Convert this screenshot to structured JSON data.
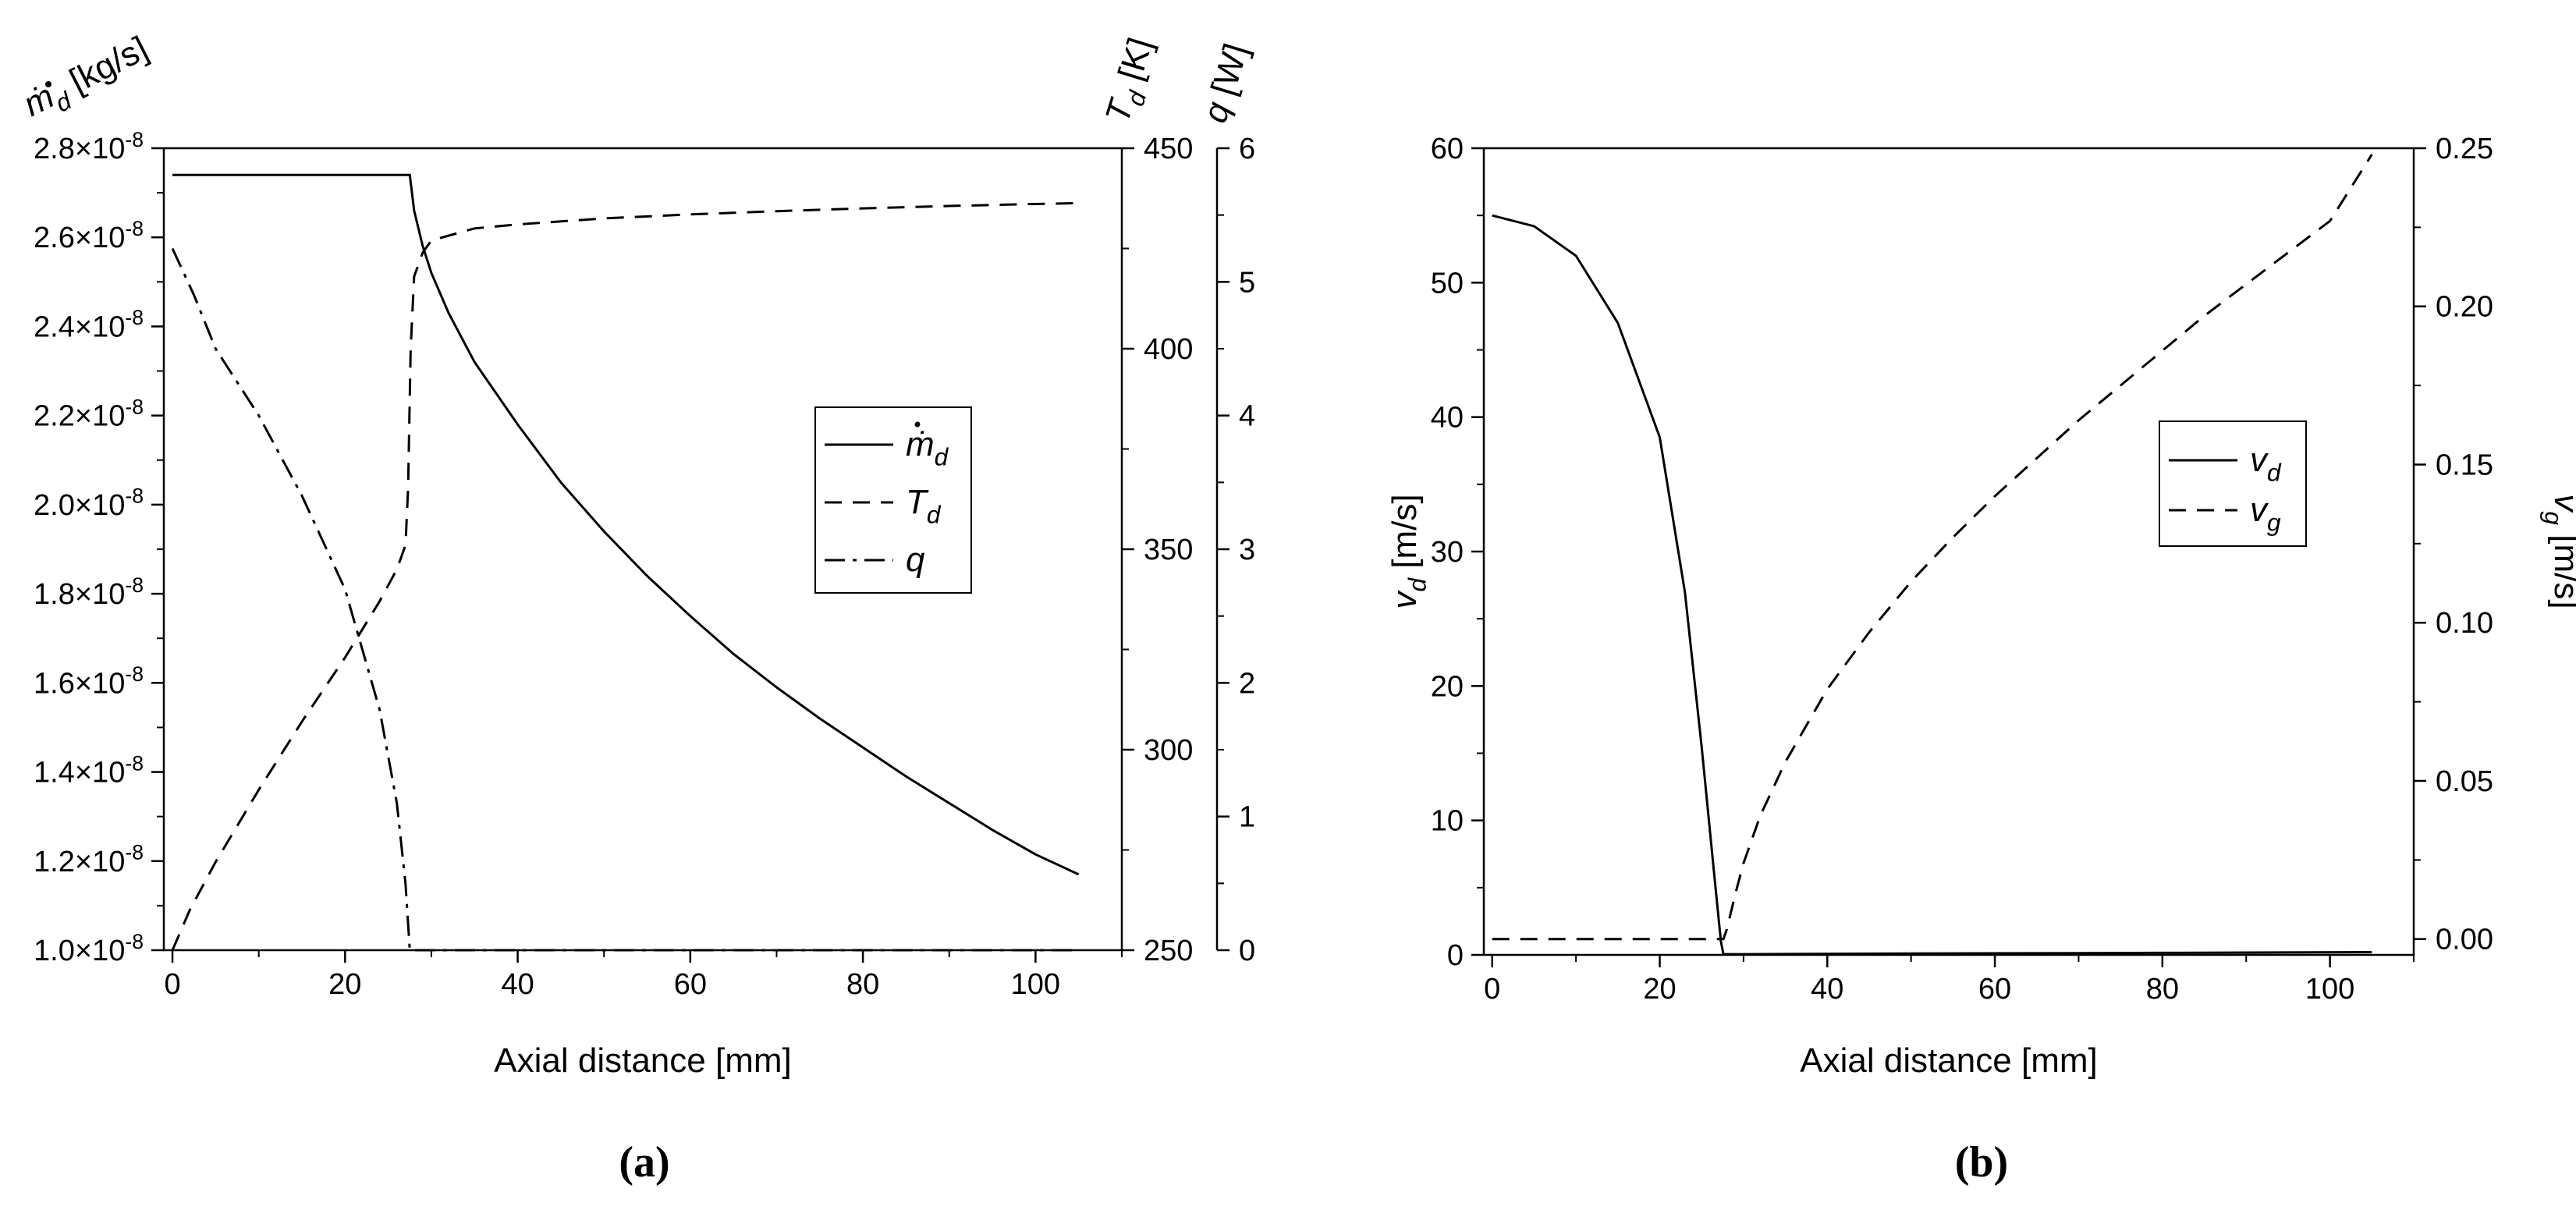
{
  "chart_data": [
    {
      "panel_label": "(a)",
      "type": "line",
      "xlabel": "Axial distance [mm]",
      "xlim": [
        -1,
        110
      ],
      "xticks": [
        0,
        20,
        40,
        60,
        80,
        100
      ],
      "y_left": {
        "label": "ṁ_d [kg/s]",
        "lim": [
          1e-08,
          2.8e-08
        ],
        "ticks": [
          1e-08,
          1.2e-08,
          1.4e-08,
          1.6e-08,
          1.8e-08,
          2e-08,
          2.2e-08,
          2.4e-08,
          2.6e-08,
          2.8e-08
        ],
        "tick_labels": [
          "1.0×10⁻⁸",
          "1.2×10⁻⁸",
          "1.4×10⁻⁸",
          "1.6×10⁻⁸",
          "1.8×10⁻⁸",
          "2.0×10⁻⁸",
          "2.2×10⁻⁸",
          "2.4×10⁻⁸",
          "2.6×10⁻⁸",
          "2.8×10⁻⁸"
        ]
      },
      "y_right_1": {
        "label": "T_d [K]",
        "lim": [
          250,
          450
        ],
        "ticks": [
          250,
          300,
          350,
          400,
          450
        ]
      },
      "y_right_2": {
        "label": "q [W]",
        "lim": [
          0,
          6
        ],
        "ticks": [
          0,
          1,
          2,
          3,
          4,
          5,
          6
        ]
      },
      "legend_position": "center-right",
      "series": [
        {
          "name": "ṁ_d",
          "axis": "left",
          "style": "solid",
          "x": [
            0,
            27.5,
            28,
            29,
            30,
            32,
            35,
            40,
            45,
            50,
            55,
            60,
            65,
            70,
            75,
            80,
            85,
            90,
            95,
            100,
            105
          ],
          "y": [
            2.74e-08,
            2.74e-08,
            2.66e-08,
            2.58e-08,
            2.52e-08,
            2.43e-08,
            2.32e-08,
            2.18e-08,
            2.05e-08,
            1.94e-08,
            1.84e-08,
            1.75e-08,
            1.665e-08,
            1.59e-08,
            1.52e-08,
            1.455e-08,
            1.39e-08,
            1.33e-08,
            1.27e-08,
            1.215e-08,
            1.17e-08
          ]
        },
        {
          "name": "T_d",
          "axis": "right1",
          "style": "dashed",
          "x": [
            0,
            2,
            5,
            10,
            15,
            20,
            24,
            26,
            27,
            27.3,
            27.6,
            28,
            29,
            30,
            35,
            40,
            50,
            60,
            70,
            80,
            90,
            100,
            105
          ],
          "y": [
            250,
            260,
            272,
            290,
            307,
            323,
            337,
            345,
            351,
            365,
            400,
            418,
            424,
            427,
            430,
            431,
            432.5,
            433.5,
            434.3,
            435,
            435.6,
            436.1,
            436.3
          ]
        },
        {
          "name": "q",
          "axis": "right2",
          "style": "dashdot",
          "x": [
            0,
            2.5,
            5,
            10,
            15,
            20,
            24,
            26,
            27,
            27.5,
            30,
            60,
            105
          ],
          "y": [
            5.25,
            4.9,
            4.5,
            4.0,
            3.4,
            2.7,
            1.8,
            1.1,
            0.5,
            0.0,
            0.0,
            0.0,
            0.0
          ]
        }
      ]
    },
    {
      "panel_label": "(b)",
      "type": "line",
      "xlabel": "Axial distance [mm]",
      "xlim": [
        -1,
        110
      ],
      "xticks": [
        0,
        20,
        40,
        60,
        80,
        100
      ],
      "y_left": {
        "label": "v_d [m/s]",
        "lim": [
          0,
          60
        ],
        "ticks": [
          0,
          10,
          20,
          30,
          40,
          50,
          60
        ]
      },
      "y_right": {
        "label": "v_g [m/s]",
        "lim": [
          -0.005,
          0.25
        ],
        "ticks": [
          0.0,
          0.05,
          0.1,
          0.15,
          0.2,
          0.25
        ],
        "tick_labels": [
          "0.00",
          "0.05",
          "0.10",
          "0.15",
          "0.20",
          "0.25"
        ]
      },
      "legend_position": "center-right",
      "series": [
        {
          "name": "v_d",
          "axis": "left",
          "style": "solid",
          "x": [
            0,
            5,
            10,
            15,
            20,
            23,
            25,
            26.5,
            27.3,
            27.6,
            30,
            50,
            80,
            105
          ],
          "y": [
            55,
            54.2,
            52,
            47,
            38.5,
            27,
            15.5,
            6,
            1,
            0.05,
            0.05,
            0.1,
            0.15,
            0.2
          ]
        },
        {
          "name": "v_g",
          "axis": "right",
          "style": "dashed",
          "x": [
            0,
            27,
            27.6,
            28,
            29,
            30,
            32,
            35,
            40,
            45,
            50,
            55,
            60,
            65,
            70,
            75,
            80,
            85,
            90,
            95,
            100,
            105
          ],
          "y": [
            0.0,
            0.0,
            0.0,
            0.003,
            0.014,
            0.024,
            0.039,
            0.056,
            0.079,
            0.097,
            0.113,
            0.127,
            0.14,
            0.152,
            0.164,
            0.175,
            0.186,
            0.197,
            0.207,
            0.217,
            0.227,
            0.248
          ]
        }
      ]
    }
  ]
}
